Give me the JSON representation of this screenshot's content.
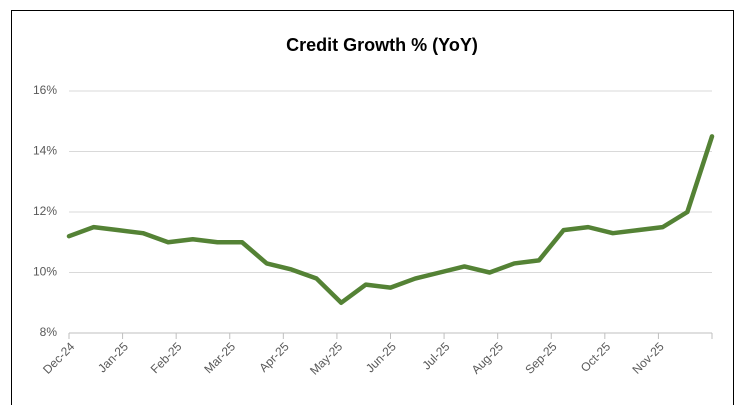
{
  "chart_data": {
    "type": "line",
    "title": "Credit Growth % (YoY)",
    "x": [
      0,
      0.46,
      0.92,
      1.38,
      1.85,
      2.31,
      2.77,
      3.23,
      3.69,
      4.15,
      4.62,
      5.08,
      5.54,
      6,
      6.46,
      6.92,
      7.38,
      7.85,
      8.31,
      8.77,
      9.23,
      9.69,
      10.15,
      10.62,
      11.08,
      11.54,
      12
    ],
    "series": [
      {
        "name": "Credit Growth % (YoY)",
        "color": "#548235",
        "values": [
          11.2,
          11.5,
          11.4,
          11.3,
          11.0,
          11.1,
          11.0,
          11.0,
          10.3,
          10.1,
          9.8,
          9.0,
          9.6,
          9.5,
          9.8,
          10.0,
          10.2,
          10.0,
          10.3,
          10.4,
          11.4,
          11.5,
          11.3,
          11.4,
          11.5,
          12.0,
          14.5
        ]
      }
    ],
    "xlim": [
      0,
      12
    ],
    "xticks": [
      {
        "value": 0,
        "label": "Dec-24"
      },
      {
        "value": 1,
        "label": "Jan-25"
      },
      {
        "value": 2,
        "label": "Feb-25"
      },
      {
        "value": 3,
        "label": "Mar-25"
      },
      {
        "value": 4,
        "label": "Apr-25"
      },
      {
        "value": 5,
        "label": "May-25"
      },
      {
        "value": 6,
        "label": "Jun-25"
      },
      {
        "value": 7,
        "label": "Jul-25"
      },
      {
        "value": 8,
        "label": "Aug-25"
      },
      {
        "value": 9,
        "label": "Sep-25"
      },
      {
        "value": 10,
        "label": "Oct-25"
      },
      {
        "value": 11,
        "label": "Nov-25"
      }
    ],
    "ylim": [
      8,
      16
    ],
    "yticks": [
      {
        "value": 8,
        "label": "8%"
      },
      {
        "value": 10,
        "label": "10%"
      },
      {
        "value": 12,
        "label": "12%"
      },
      {
        "value": 14,
        "label": "14%"
      },
      {
        "value": 16,
        "label": "16%"
      }
    ],
    "grid": true
  }
}
